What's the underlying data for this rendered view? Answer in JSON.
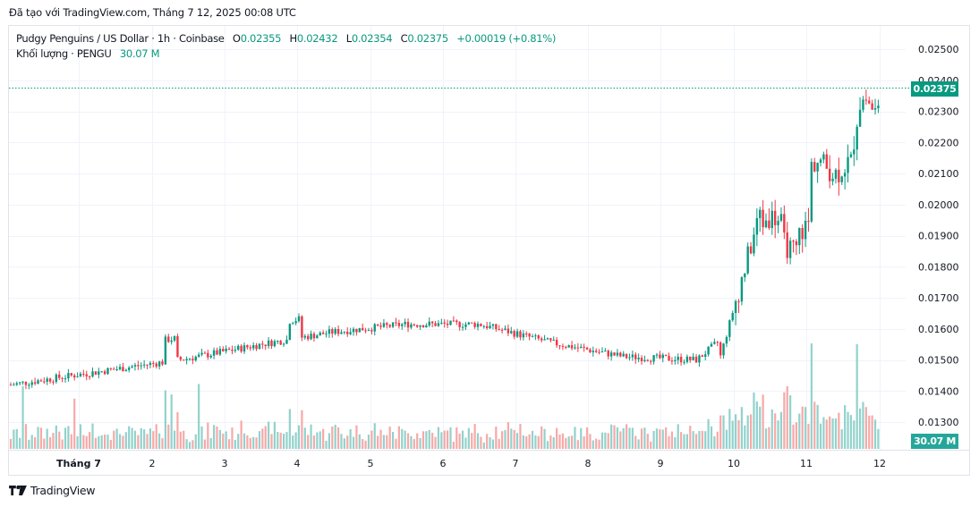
{
  "caption": "Đã tạo với TradingView.com, Tháng 7 12, 2025 00:08 UTC",
  "legend": {
    "symbol_line": "Pudgy Penguins / US Dollar · 1h · Coinbase",
    "open_label": "O",
    "open": "0.02355",
    "high_label": "H",
    "high": "0.02432",
    "low_label": "L",
    "low": "0.02354",
    "close_label": "C",
    "close": "0.02375",
    "change": "+0.00019 (+0.81%)",
    "volume_line": "Khối lượng · PENGU",
    "volume": "30.07 M"
  },
  "price_tag": "0.02375",
  "volume_tag": "30.07 M",
  "footer": {
    "brand": "TradingView"
  },
  "colors": {
    "up": "#089981",
    "down": "#f23645",
    "up_volume": "#92d2cc",
    "down_volume": "#f7a9a7",
    "grid": "#f0f3fa",
    "last_price_line": "#089981"
  },
  "chart_data": {
    "type": "candlestick",
    "title": "Pudgy Penguins / US Dollar · 1h · Coinbase",
    "xlabel": "",
    "ylabel": "",
    "y_ticks": [
      "0.02500",
      "0.02400",
      "0.02300",
      "0.02200",
      "0.02100",
      "0.02000",
      "0.01900",
      "0.01800",
      "0.01700",
      "0.01600",
      "0.01500",
      "0.01400",
      "0.01300"
    ],
    "x_ticks": [
      "Tháng 7",
      "2",
      "3",
      "4",
      "5",
      "6",
      "7",
      "8",
      "9",
      "10",
      "11",
      "12"
    ],
    "ylim": [
      0.0127,
      0.0257
    ],
    "grid": true,
    "last_price": 0.02375,
    "last_volume": "30.07 M",
    "approx_daily_path": [
      {
        "day": "Jun 30 (late)",
        "open": 0.0142,
        "close": 0.0146
      },
      {
        "day": "Jul 1",
        "open": 0.0146,
        "close": 0.0148,
        "high": 0.0156,
        "low": 0.0133
      },
      {
        "day": "Jul 2",
        "open": 0.0148,
        "close": 0.0153,
        "high": 0.0165,
        "low": 0.014
      },
      {
        "day": "Jul 3",
        "open": 0.0153,
        "close": 0.0157,
        "high": 0.0162,
        "low": 0.015
      },
      {
        "day": "Jul 4",
        "open": 0.0157,
        "close": 0.0161,
        "high": 0.0172,
        "low": 0.0156
      },
      {
        "day": "Jul 5",
        "open": 0.0161,
        "close": 0.0162,
        "high": 0.0169,
        "low": 0.0158
      },
      {
        "day": "Jul 6",
        "open": 0.0162,
        "close": 0.0161,
        "high": 0.0167,
        "low": 0.0154
      },
      {
        "day": "Jul 7",
        "open": 0.0161,
        "close": 0.015,
        "high": 0.0162,
        "low": 0.0148
      },
      {
        "day": "Jul 8",
        "open": 0.015,
        "close": 0.0152,
        "high": 0.0156,
        "low": 0.0143
      },
      {
        "day": "Jul 9",
        "open": 0.0152,
        "close": 0.0148,
        "high": 0.0156,
        "low": 0.0145
      },
      {
        "day": "Jul 10",
        "open": 0.0148,
        "close": 0.0192,
        "high": 0.0203,
        "low": 0.0145
      },
      {
        "day": "Jul 11",
        "open": 0.0192,
        "close": 0.0236,
        "high": 0.0244,
        "low": 0.0183
      },
      {
        "day": "Jul 12 (00:00)",
        "open": 0.02355,
        "close": 0.02375,
        "high": 0.02432,
        "low": 0.02354
      }
    ],
    "volume_peak": {
      "day": "Jul 11 (late)",
      "relative": "largest bar"
    }
  }
}
